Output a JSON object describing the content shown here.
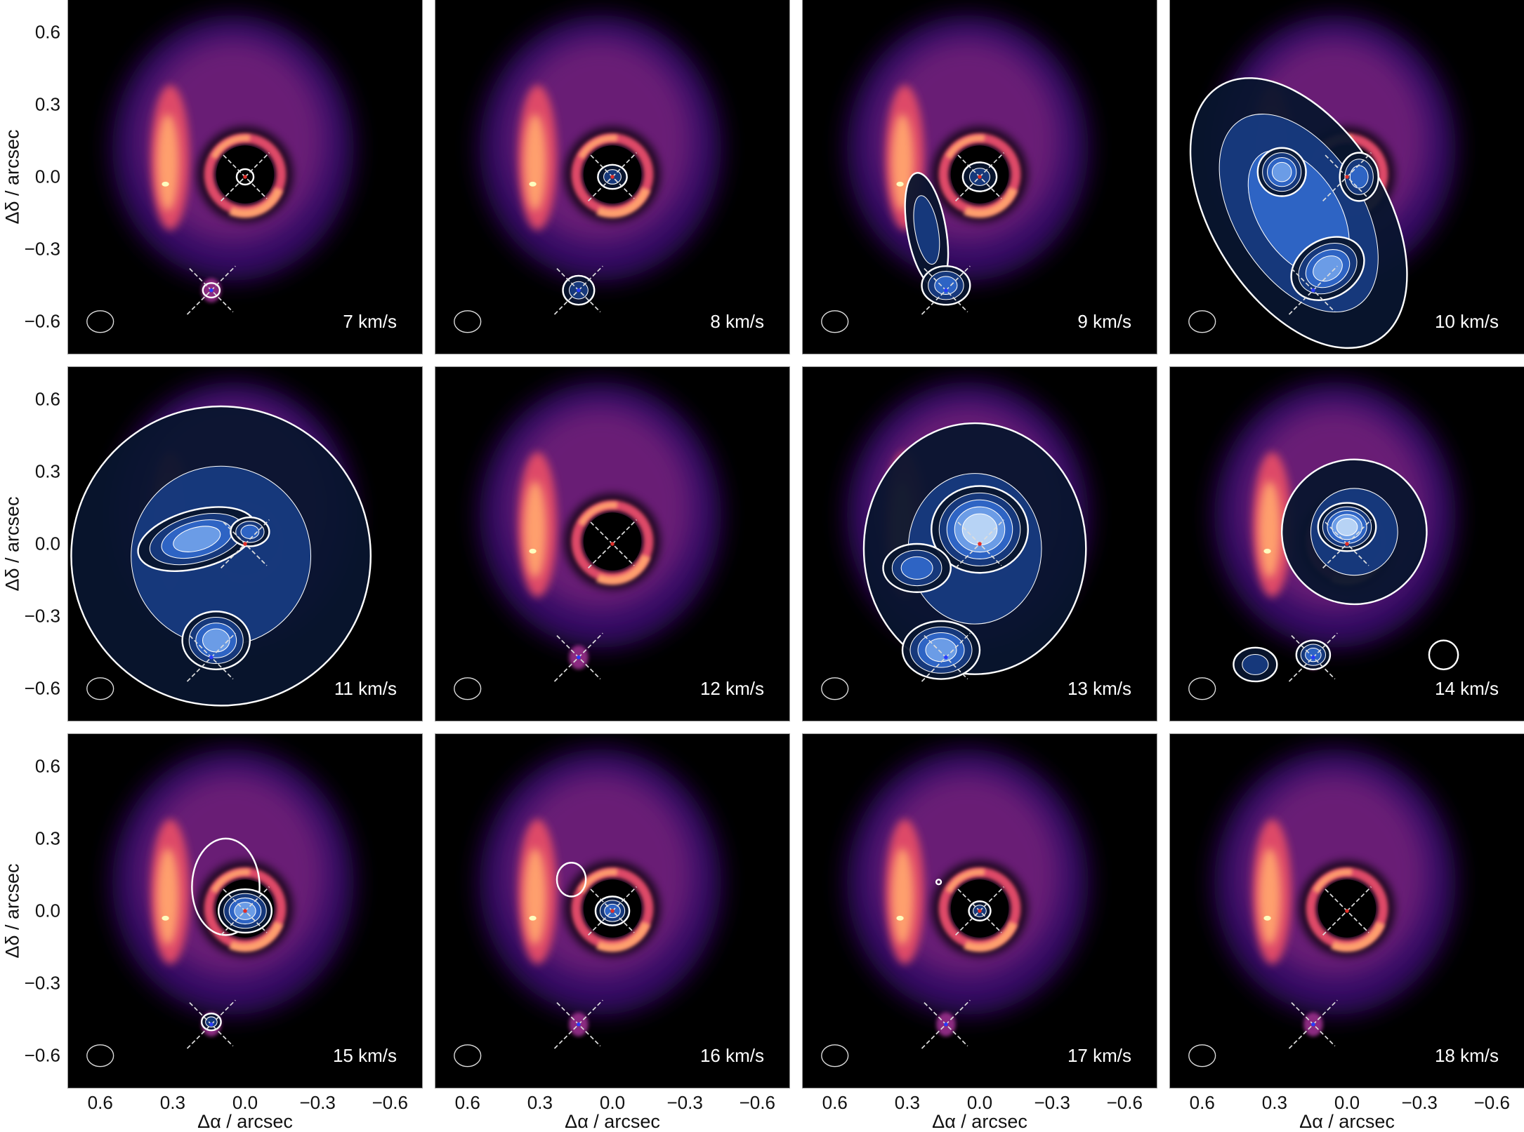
{
  "chart_data": {
    "type": "heatmap",
    "title": "",
    "xlabel": "Δα / arcsec",
    "ylabel": "Δδ / arcsec",
    "xlim": [
      0.73,
      -0.73
    ],
    "ylim": [
      -0.73,
      0.73
    ],
    "x_ticks": [
      "0.6",
      "0.3",
      "0.0",
      "−0.3",
      "−0.6"
    ],
    "x_tick_values": [
      0.6,
      0.3,
      0.0,
      -0.3,
      -0.6
    ],
    "y_ticks": [
      "0.6",
      "0.3",
      "0.0",
      "−0.3",
      "−0.6"
    ],
    "y_tick_values": [
      0.6,
      0.3,
      0.0,
      -0.3,
      -0.6
    ],
    "grid": false,
    "layout": "3 rows x 4 columns of channel maps",
    "colormap_background": [
      "#000000",
      "#3b0f6f",
      "#8c2981",
      "#de4968",
      "#fe9f6d",
      "#fcfdbf"
    ],
    "contour_colors": [
      "#08152e",
      "#173a80",
      "#2f66c8",
      "#6f9fe8",
      "#bcd6f6",
      "#eef6ff"
    ],
    "marker_colors": {
      "primary": "#e0302a",
      "companion": "#2a3cff"
    },
    "panels": [
      {
        "label": "7 km/s"
      },
      {
        "label": "8 km/s"
      },
      {
        "label": "9 km/s"
      },
      {
        "label": "10 km/s"
      },
      {
        "label": "11 km/s"
      },
      {
        "label": "12 km/s"
      },
      {
        "label": "13 km/s"
      },
      {
        "label": "14 km/s"
      },
      {
        "label": "15 km/s"
      },
      {
        "label": "16 km/s"
      },
      {
        "label": "17 km/s"
      },
      {
        "label": "18 km/s"
      }
    ]
  }
}
